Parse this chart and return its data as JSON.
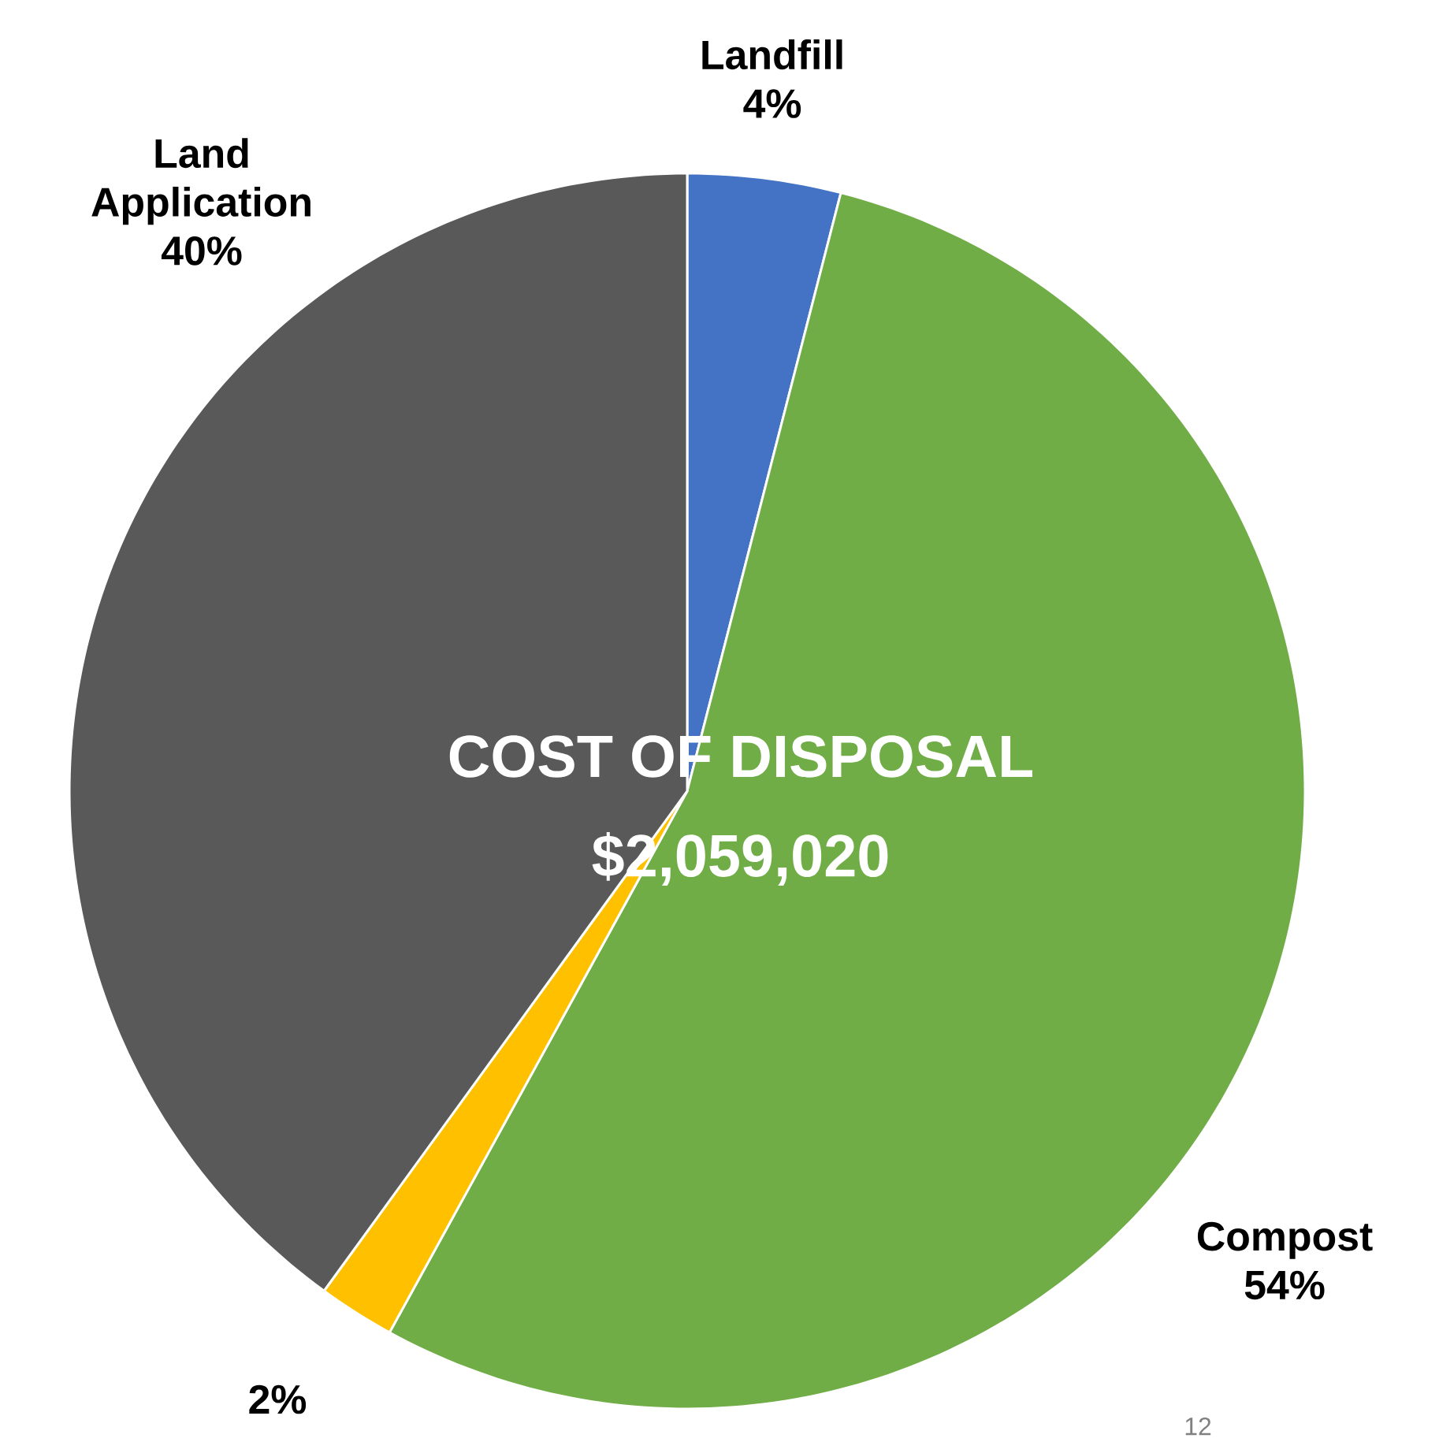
{
  "chart_data": {
    "type": "pie",
    "title": "COST OF DISPOSAL",
    "subtitle": "$2,059,020",
    "categories": [
      "Landfill",
      "Compost",
      null,
      "Land Application"
    ],
    "values": [
      4,
      54,
      2,
      40
    ],
    "value_labels": [
      "4%",
      "54%",
      "2%",
      "40%"
    ],
    "colors": [
      "#4472c4",
      "#70ad47",
      "#ffc000",
      "#595959"
    ],
    "annotations": [
      "12"
    ]
  }
}
